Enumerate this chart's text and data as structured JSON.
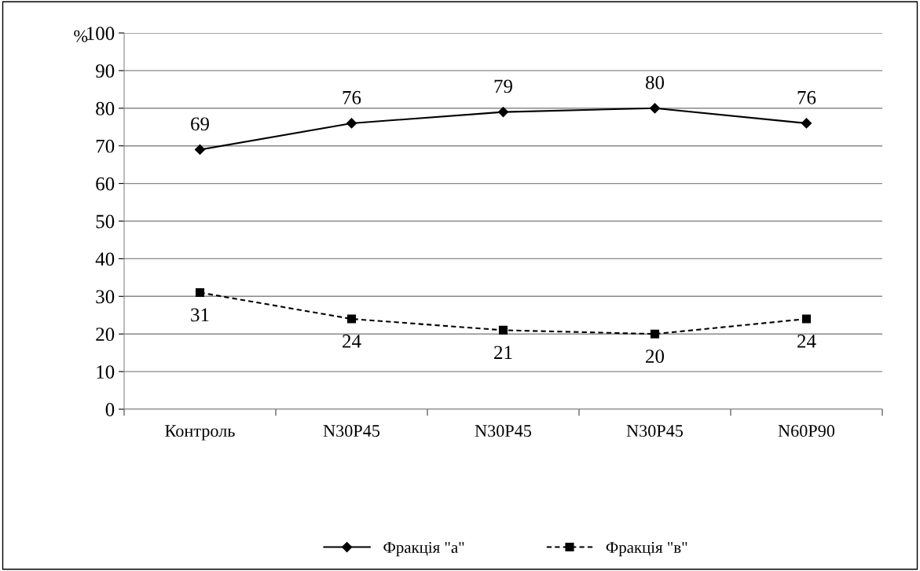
{
  "chart_data": {
    "type": "line",
    "ylabel": "%",
    "categories": [
      "Контроль",
      "N30P45",
      "N30P45",
      "N30P45",
      "N60P90"
    ],
    "series": [
      {
        "name": "Фракція \"а\"",
        "color": "#000000",
        "values": [
          69,
          76,
          79,
          80,
          76
        ],
        "marker": "diamond",
        "line_style": "solid"
      },
      {
        "name": "Фракція \"в\"",
        "color": "#000000",
        "values": [
          31,
          24,
          21,
          20,
          24
        ],
        "marker": "square",
        "line_style": "dashed"
      }
    ],
    "ylim": [
      0,
      100
    ],
    "yticks": [
      0,
      10,
      20,
      30,
      40,
      50,
      60,
      70,
      80,
      90,
      100
    ],
    "grid": "y",
    "legend": "bottom",
    "data_labels": true
  }
}
